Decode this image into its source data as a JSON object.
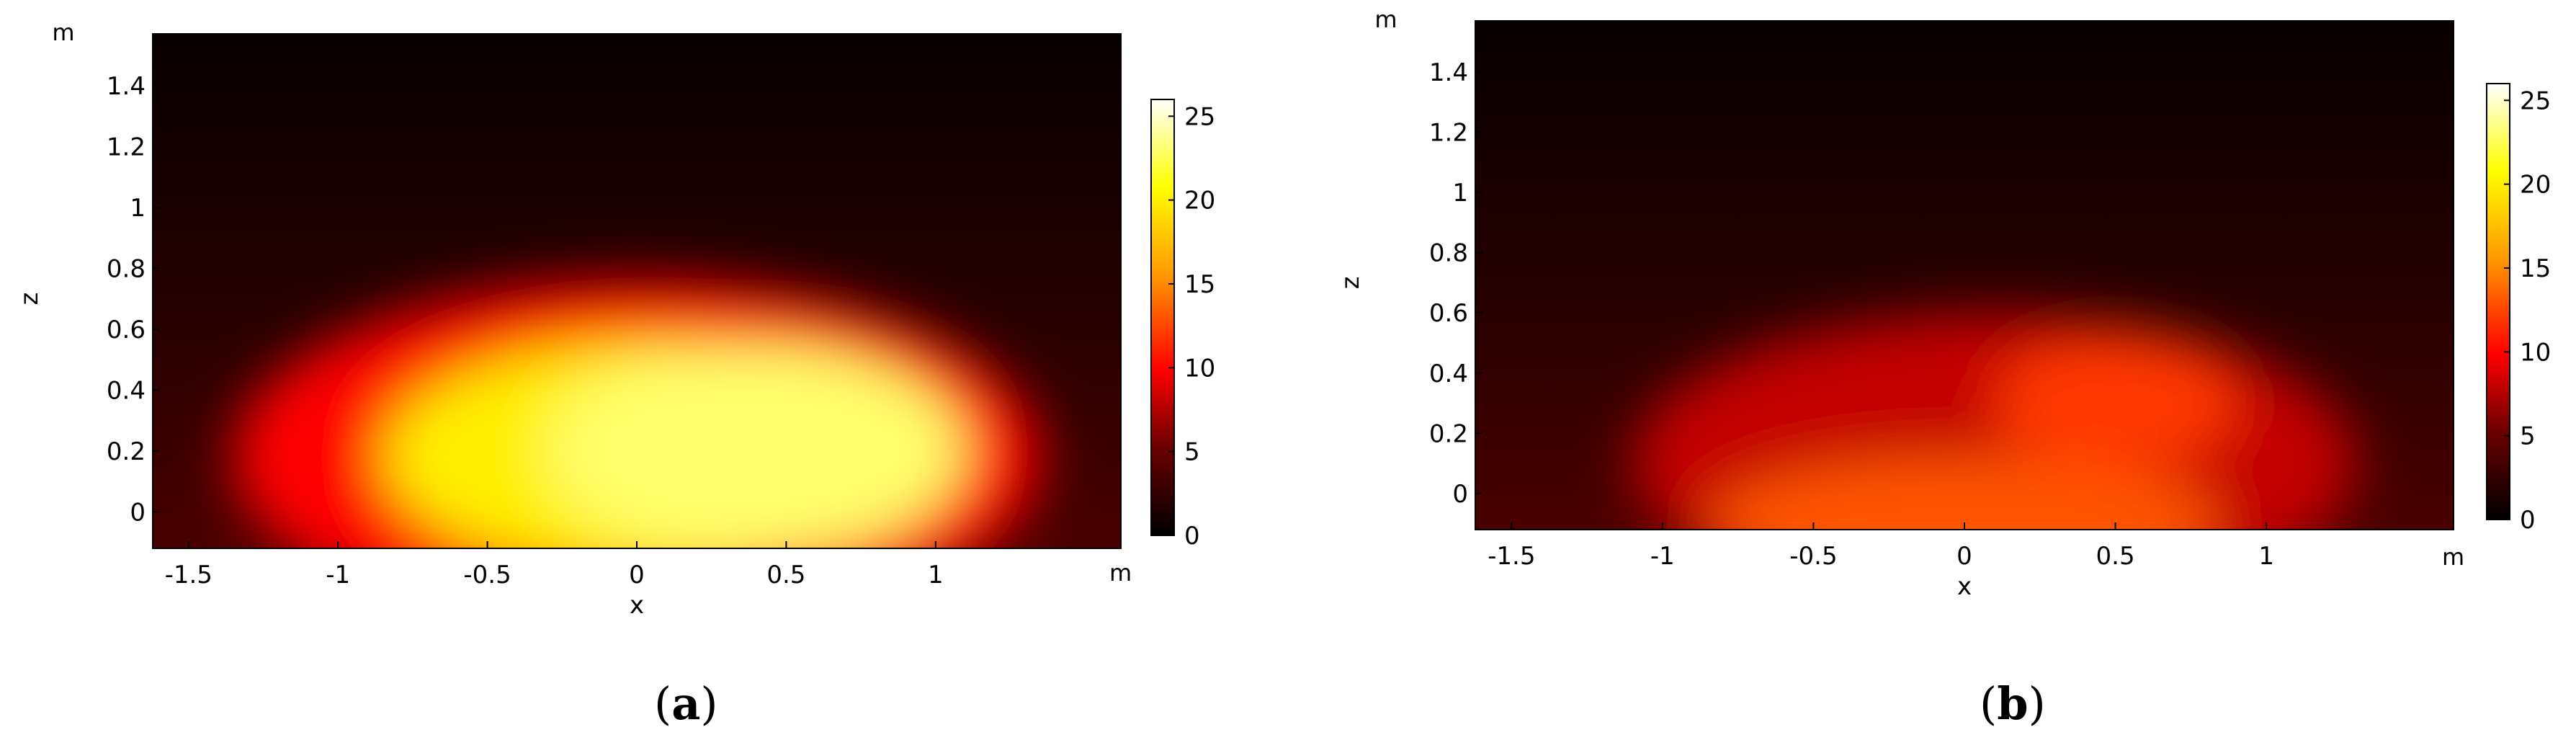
{
  "chart_data": [
    {
      "type": "heatmap",
      "panel_label": "(a)",
      "panel_letter": "a",
      "xlabel": "x",
      "ylabel": "z",
      "x_unit": "m",
      "y_unit": "m",
      "xlim": [
        -1.62,
        1.62
      ],
      "ylim": [
        -0.12,
        1.57
      ],
      "xticks": [
        -1.5,
        -1,
        -0.5,
        0,
        0.5,
        1
      ],
      "xtick_labels": [
        "-1.5",
        "-1",
        "-0.5",
        "0",
        "0.5",
        "1"
      ],
      "yticks": [
        0,
        0.2,
        0.4,
        0.6,
        0.8,
        1,
        1.2,
        1.4
      ],
      "ytick_labels": [
        "0",
        "0.2",
        "0.4",
        "0.6",
        "0.8",
        "1",
        "1.2",
        "1.4"
      ],
      "colorbar": {
        "min": 0,
        "max": 26,
        "ticks": [
          0,
          5,
          10,
          15,
          20,
          25
        ],
        "tick_labels": [
          "0",
          "5",
          "10",
          "15",
          "20",
          "25"
        ],
        "colormap": "thermal (black-red-yellow-white)"
      },
      "field_blobs": [
        {
          "x": 0.4,
          "z": 0.2,
          "value": 23,
          "rx": 0.7,
          "rz": 0.35
        },
        {
          "x": 0.05,
          "z": 0.18,
          "value": 20,
          "rx": 0.9,
          "rz": 0.38
        },
        {
          "x": 0.0,
          "z": 0.18,
          "value": 10,
          "rx": 1.35,
          "rz": 0.58
        }
      ]
    },
    {
      "type": "heatmap",
      "panel_label": "(b)",
      "panel_letter": "b",
      "xlabel": "x",
      "ylabel": "z",
      "x_unit": "m",
      "y_unit": "m",
      "xlim": [
        -1.62,
        1.62
      ],
      "ylim": [
        -0.12,
        1.57
      ],
      "xticks": [
        -1.5,
        -1,
        -0.5,
        0,
        0.5,
        1
      ],
      "xtick_labels": [
        "-1.5",
        "-1",
        "-0.5",
        "0",
        "0.5",
        "1"
      ],
      "yticks": [
        0,
        0.2,
        0.4,
        0.6,
        0.8,
        1,
        1.2,
        1.4
      ],
      "ytick_labels": [
        "0",
        "0.2",
        "0.4",
        "0.6",
        "0.8",
        "1",
        "1.2",
        "1.4"
      ],
      "colorbar": {
        "min": 0,
        "max": 26,
        "ticks": [
          0,
          5,
          10,
          15,
          20,
          25
        ],
        "tick_labels": [
          "0",
          "5",
          "10",
          "15",
          "20",
          "25"
        ],
        "colormap": "thermal (black-red-yellow-white)"
      },
      "field_blobs": [
        {
          "x": 0.5,
          "z": 0.3,
          "value": 12,
          "rx": 0.4,
          "rz": 0.22
        },
        {
          "x": 0.0,
          "z": -0.1,
          "value": 13,
          "rx": 0.85,
          "rz": 0.22
        },
        {
          "x": 0.1,
          "z": 0.1,
          "value": 8,
          "rx": 1.2,
          "rz": 0.5
        }
      ]
    }
  ]
}
